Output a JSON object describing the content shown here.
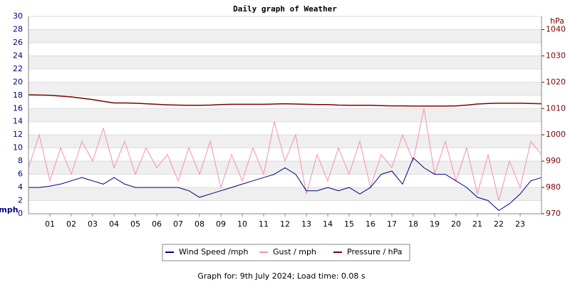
{
  "chart_data": {
    "type": "line",
    "title": "Daily graph of Weather",
    "y_label": "mph",
    "y2_label": "hPa",
    "footer": "Graph for: 9th July 2024; Load time: 0.08 s",
    "x": [
      0,
      0.5,
      1,
      1.5,
      2,
      2.5,
      3,
      3.5,
      4,
      4.5,
      5,
      5.5,
      6,
      6.5,
      7,
      7.5,
      8,
      8.5,
      9,
      9.5,
      10,
      10.5,
      11,
      11.5,
      12,
      12.5,
      13,
      13.5,
      14,
      14.5,
      15,
      15.5,
      16,
      16.5,
      17,
      17.5,
      18,
      18.5,
      19,
      19.5,
      20,
      20.5,
      21,
      21.5,
      22,
      22.5,
      23,
      23.5,
      24
    ],
    "xlim": [
      0,
      24
    ],
    "xticks": [
      {
        "value": 1,
        "label": "01"
      },
      {
        "value": 2,
        "label": "02"
      },
      {
        "value": 3,
        "label": "03"
      },
      {
        "value": 4,
        "label": "04"
      },
      {
        "value": 5,
        "label": "05"
      },
      {
        "value": 6,
        "label": "06"
      },
      {
        "value": 7,
        "label": "07"
      },
      {
        "value": 8,
        "label": "08"
      },
      {
        "value": 9,
        "label": "09"
      },
      10,
      11,
      12,
      13,
      14,
      15,
      16,
      17,
      18,
      19,
      20,
      21,
      22,
      23
    ],
    "ylim": [
      0,
      30
    ],
    "yticks": [
      0,
      2,
      4,
      6,
      8,
      10,
      12,
      14,
      16,
      18,
      20,
      22,
      24,
      26,
      28,
      30
    ],
    "y2lim": [
      970,
      1045
    ],
    "y2ticks": [
      970,
      980,
      990,
      1000,
      1010,
      1020,
      1030,
      1040
    ],
    "grid": true,
    "series": [
      {
        "name": "Wind Speed /mph",
        "color": "#000080",
        "values": [
          4,
          4,
          4.2,
          4.5,
          5,
          5.5,
          5,
          4.5,
          5.5,
          4.5,
          4,
          4,
          4,
          4,
          4,
          3.5,
          2.5,
          3,
          3.5,
          4,
          4.5,
          5,
          5.5,
          6,
          7,
          6,
          3.5,
          3.5,
          4,
          3.5,
          4,
          3,
          4,
          6,
          6.5,
          4.5,
          8.5,
          7,
          6,
          6,
          5,
          4,
          2.5,
          2,
          0.5,
          1.5,
          3,
          5,
          5.5
        ]
      },
      {
        "name": "Gust / mph",
        "color": "#f490b2",
        "values": [
          7,
          12,
          5,
          10,
          6,
          11,
          8,
          13,
          7,
          11,
          6,
          10,
          7,
          9,
          5,
          10,
          6,
          11,
          4,
          9,
          5,
          10,
          6,
          14,
          8,
          12,
          3,
          9,
          5,
          10,
          6,
          11,
          4,
          9,
          7,
          12,
          8,
          16,
          6,
          11,
          5,
          10,
          3,
          9,
          2,
          8,
          4,
          11,
          9
        ]
      },
      {
        "name": "Pressure / hPa",
        "color": "#800000",
        "axis": "y2",
        "values": [
          1015.2,
          1015.1,
          1015,
          1014.7,
          1014.4,
          1013.9,
          1013.4,
          1012.7,
          1012.1,
          1012.1,
          1012,
          1011.8,
          1011.6,
          1011.4,
          1011.3,
          1011.2,
          1011.2,
          1011.3,
          1011.5,
          1011.6,
          1011.6,
          1011.6,
          1011.6,
          1011.7,
          1011.8,
          1011.7,
          1011.6,
          1011.5,
          1011.5,
          1011.3,
          1011.2,
          1011.2,
          1011.2,
          1011.1,
          1011,
          1011,
          1010.9,
          1010.9,
          1010.9,
          1010.9,
          1011,
          1011.3,
          1011.7,
          1011.9,
          1012,
          1012,
          1012,
          1011.9,
          1011.8
        ]
      }
    ]
  }
}
